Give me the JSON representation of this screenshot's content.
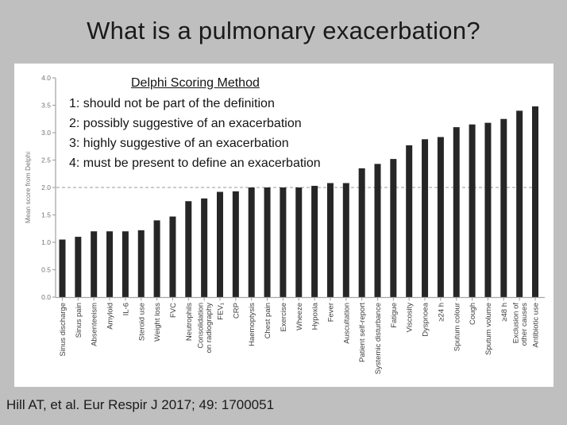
{
  "slide": {
    "title": "What is a pulmonary exacerbation?",
    "citation": "Hill AT, et al. Eur Respir J 2017; 49: 1700051",
    "background_color": "#bfbfbf",
    "panel_color": "#ffffff"
  },
  "annotation": {
    "heading": "Delphi Scoring Method",
    "lines": [
      "1: should not be part of the definition",
      "2: possibly suggestive of an exacerbation",
      "3: highly suggestive of an exacerbation",
      "4: must be present to define an exacerbation"
    ]
  },
  "chart_data": {
    "type": "bar",
    "title": "",
    "xlabel": "",
    "ylabel": "Mean score from Delphi",
    "ylim": [
      0,
      4
    ],
    "yticks": [
      0.0,
      0.5,
      1.0,
      1.5,
      2.0,
      2.5,
      3.0,
      3.5,
      4.0
    ],
    "ytick_format_decimals": 1,
    "reference_line": 2.0,
    "grid": "off",
    "legend": "none",
    "categories": [
      "Sinus discharge",
      "Sinus pain",
      "Absenteeism",
      "Amyloid",
      "IL-6",
      "Steroid use",
      "Weight loss",
      "FVC",
      "Neutrophils",
      "Consolidation\non radiography",
      "FEV₁",
      "CRP",
      "Haemoptysis",
      "Chest pain",
      "Exercise",
      "Wheeze",
      "Hypoxia",
      "Fever",
      "Auscultation",
      "Patient self-report",
      "Systemic disturbance",
      "Fatigue",
      "Viscosity",
      "Dyspnoea",
      "≥24 h",
      "Sputum colour",
      "Cough",
      "Sputum volume",
      "≥48 h",
      "Exclusion of\nother causes",
      "Antibiotic use"
    ],
    "values": [
      1.05,
      1.1,
      1.2,
      1.2,
      1.2,
      1.22,
      1.4,
      1.47,
      1.75,
      1.8,
      1.92,
      1.93,
      2.0,
      2.0,
      2.0,
      2.0,
      2.03,
      2.08,
      2.08,
      2.35,
      2.43,
      2.52,
      2.77,
      2.88,
      2.92,
      3.1,
      3.15,
      3.18,
      3.25,
      3.4,
      3.48
    ],
    "colors": {
      "bar": "#262626",
      "axis": "#a6a6a6",
      "ytick_label": "#737373",
      "xtick_label": "#3d3d3d",
      "reference_line": "#999999"
    }
  }
}
